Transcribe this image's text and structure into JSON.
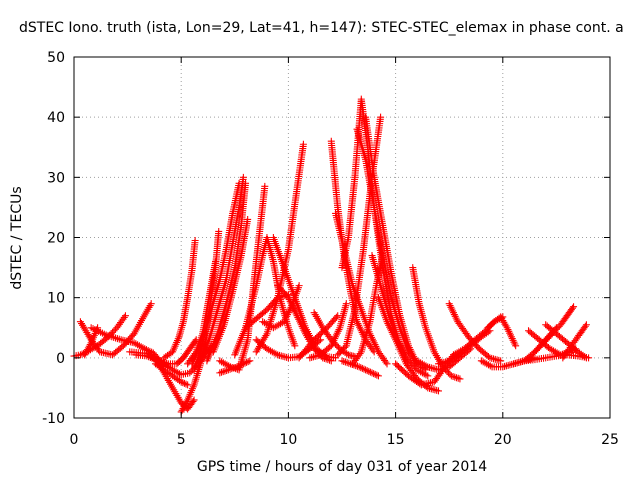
{
  "chart_data": {
    "type": "scatter",
    "title": "dSTEC Iono. truth (ista, Lon=29, Lat=41, h=147): STEC-STEC_elemax in phase cont. a",
    "xlabel": "GPS time / hours of day 031 of year 2014",
    "ylabel": "dSTEC  / TECUs",
    "xlim": [
      0,
      25
    ],
    "ylim": [
      -10,
      50
    ],
    "x_ticks": [
      0,
      5,
      10,
      15,
      20,
      25
    ],
    "y_ticks": [
      -10,
      0,
      10,
      20,
      30,
      40,
      50
    ],
    "grid": true,
    "marker": "+",
    "color": "#ff0000",
    "arcs": [
      {
        "x": [
          0.0,
          0.3,
          0.6,
          1.1,
          1.6,
          2.0,
          2.4
        ],
        "y": [
          0.3,
          0.5,
          1.0,
          2.0,
          3.5,
          5.0,
          7.0
        ]
      },
      {
        "x": [
          0.3,
          0.8,
          1.2,
          1.8,
          2.3,
          2.8,
          3.2,
          3.6
        ],
        "y": [
          6.0,
          3.0,
          1.0,
          0.5,
          2.0,
          4.0,
          6.5,
          9.0
        ]
      },
      {
        "x": [
          0.5,
          0.8,
          1.1
        ],
        "y": [
          0.5,
          2.5,
          5.0
        ]
      },
      {
        "x": [
          0.8,
          1.5,
          2.2,
          2.8,
          3.3,
          3.7,
          4.0,
          4.2
        ],
        "y": [
          5.0,
          3.8,
          3.0,
          2.5,
          1.5,
          0.8,
          -0.5,
          -1.5
        ]
      },
      {
        "x": [
          2.6,
          3.1,
          3.4,
          3.7,
          3.9,
          4.2,
          4.6,
          5.0,
          5.3,
          5.6
        ],
        "y": [
          1.0,
          0.8,
          0.8,
          0.2,
          -0.7,
          -2.5,
          -5.0,
          -7.5,
          -8.5,
          -7.0
        ]
      },
      {
        "x": [
          3.8,
          4.2,
          4.6,
          5.0,
          5.3
        ],
        "y": [
          -1.0,
          -2.0,
          -3.0,
          -4.0,
          -4.5
        ]
      },
      {
        "x": [
          2.9,
          3.4,
          3.8,
          4.2,
          4.6,
          5.0,
          5.4,
          5.8,
          6.1,
          6.4
        ],
        "y": [
          0.5,
          0.3,
          -0.3,
          -1.0,
          -2.0,
          -2.8,
          -2.5,
          -1.0,
          0.5,
          2.0
        ]
      },
      {
        "x": [
          3.6,
          4.0,
          4.4,
          4.8,
          5.1,
          5.4,
          5.7
        ],
        "y": [
          0.2,
          -0.5,
          -1.0,
          -1.0,
          0.0,
          1.5,
          3.0
        ]
      },
      {
        "x": [
          4.2,
          4.6,
          4.9,
          5.1,
          5.3,
          5.5,
          5.65
        ],
        "y": [
          0.0,
          1.0,
          3.5,
          6.0,
          10.0,
          14.5,
          19.5
        ]
      },
      {
        "x": [
          5.0,
          5.3,
          5.6,
          5.9,
          6.2
        ],
        "y": [
          -9.0,
          -7.0,
          -4.5,
          -1.0,
          4.0
        ]
      },
      {
        "x": [
          5.3,
          5.7,
          6.0,
          6.2,
          6.4,
          6.6
        ],
        "y": [
          -1.0,
          1.0,
          4.0,
          8.0,
          12.0,
          16.0
        ]
      },
      {
        "x": [
          5.6,
          5.9,
          6.2,
          6.4,
          6.6,
          6.75
        ],
        "y": [
          -2.0,
          1.0,
          5.5,
          10.0,
          15.0,
          21.0
        ]
      },
      {
        "x": [
          5.5,
          6.0,
          6.4,
          6.8,
          7.1,
          7.4,
          7.7
        ],
        "y": [
          -1.0,
          3.0,
          8.0,
          13.0,
          18.0,
          24.0,
          29.0
        ]
      },
      {
        "x": [
          5.8,
          6.3,
          6.7,
          7.1,
          7.4,
          7.7,
          7.9
        ],
        "y": [
          -1.0,
          3.0,
          8.0,
          13.0,
          19.0,
          25.0,
          30.0
        ]
      },
      {
        "x": [
          6.2,
          6.7,
          7.1,
          7.5,
          7.8,
          8.0
        ],
        "y": [
          -0.5,
          4.0,
          9.0,
          15.0,
          22.0,
          29.0
        ]
      },
      {
        "x": [
          6.5,
          7.0,
          7.4,
          7.8,
          8.1
        ],
        "y": [
          1.0,
          5.5,
          11.0,
          17.0,
          23.0
        ]
      },
      {
        "x": [
          6.8,
          7.3,
          7.7,
          8.1,
          8.5,
          8.9
        ],
        "y": [
          -0.5,
          -1.5,
          -2.0,
          3.0,
          16.0,
          28.5
        ]
      },
      {
        "x": [
          6.8,
          7.2,
          7.6,
          7.9,
          8.2
        ],
        "y": [
          -2.5,
          -2.0,
          -1.5,
          -1.0,
          -0.5
        ]
      },
      {
        "x": [
          7.5,
          8.0,
          8.5,
          8.8,
          9.0,
          9.3,
          9.6,
          10.0,
          10.3
        ],
        "y": [
          0.5,
          5.0,
          12.0,
          17.0,
          20.0,
          16.0,
          10.0,
          5.0,
          2.0
        ]
      },
      {
        "x": [
          8.0,
          8.5,
          9.0,
          9.5,
          10.0
        ],
        "y": [
          5.0,
          6.5,
          8.0,
          10.0,
          10.5
        ]
      },
      {
        "x": [
          8.5,
          9.0,
          9.5,
          10.0,
          10.4,
          10.7
        ],
        "y": [
          1.0,
          4.0,
          10.0,
          18.0,
          28.0,
          35.5
        ]
      },
      {
        "x": [
          8.8,
          9.3,
          9.8,
          10.2,
          10.5
        ],
        "y": [
          6.0,
          5.0,
          6.0,
          9.0,
          12.0
        ]
      },
      {
        "x": [
          8.5,
          9.0,
          9.5,
          10.0,
          10.5,
          11.0,
          11.5
        ],
        "y": [
          3.0,
          1.5,
          0.5,
          0.0,
          0.2,
          1.5,
          3.0
        ]
      },
      {
        "x": [
          9.3,
          9.8,
          10.3,
          10.8,
          11.3,
          11.8,
          12.2
        ],
        "y": [
          20.0,
          15.0,
          10.0,
          5.0,
          1.5,
          0.2,
          0.0
        ]
      },
      {
        "x": [
          9.5,
          10.0,
          10.4,
          10.8,
          11.2,
          11.6,
          12.0
        ],
        "y": [
          12.0,
          10.0,
          7.0,
          4.0,
          1.5,
          0.0,
          -0.5
        ]
      },
      {
        "x": [
          10.5,
          11.2,
          11.8,
          12.3
        ],
        "y": [
          0.0,
          3.0,
          5.0,
          7.0
        ]
      },
      {
        "x": [
          11.0,
          11.5,
          12.0,
          12.4,
          12.7
        ],
        "y": [
          0.0,
          0.5,
          2.0,
          5.0,
          9.0
        ]
      },
      {
        "x": [
          11.2,
          11.6,
          12.0,
          12.4,
          12.8,
          13.1
        ],
        "y": [
          7.5,
          5.0,
          3.0,
          1.5,
          0.5,
          0.2
        ]
      },
      {
        "x": [
          12.0,
          12.3,
          12.6,
          12.9,
          13.2,
          13.6,
          14.0
        ],
        "y": [
          36.0,
          25.0,
          17.0,
          11.0,
          6.0,
          3.0,
          1.0
        ]
      },
      {
        "x": [
          12.2,
          12.6,
          13.0,
          13.4,
          13.8,
          14.2,
          14.6
        ],
        "y": [
          24.0,
          18.0,
          12.0,
          8.0,
          4.0,
          1.0,
          -1.0
        ]
      },
      {
        "x": [
          12.5,
          12.8,
          13.1,
          13.4,
          13.7,
          14.0,
          14.4,
          14.8,
          15.2
        ],
        "y": [
          15.0,
          20.0,
          30.0,
          43.0,
          35.0,
          25.0,
          15.0,
          7.0,
          2.0
        ]
      },
      {
        "x": [
          12.3,
          12.7,
          13.1,
          13.5,
          13.9,
          14.3
        ],
        "y": [
          0.5,
          2.0,
          8.0,
          18.0,
          30.0,
          40.0
        ]
      },
      {
        "x": [
          13.2,
          13.6,
          14.0,
          14.4,
          14.8,
          15.2,
          15.6,
          16.0
        ],
        "y": [
          38.0,
          33.0,
          25.0,
          17.0,
          10.0,
          5.0,
          1.0,
          -1.0
        ]
      },
      {
        "x": [
          13.6,
          14.0,
          14.4,
          14.8,
          15.2,
          15.6,
          16.0,
          16.4
        ],
        "y": [
          40.0,
          30.0,
          22.0,
          14.0,
          7.0,
          2.0,
          -1.0,
          -2.0
        ]
      },
      {
        "x": [
          13.0,
          13.4,
          13.8,
          14.1,
          14.4
        ],
        "y": [
          -1.0,
          1.0,
          6.0,
          12.0,
          17.0
        ]
      },
      {
        "x": [
          12.5,
          12.9,
          13.3,
          13.6,
          13.9,
          14.2
        ],
        "y": [
          -0.5,
          -1.0,
          -1.5,
          -2.0,
          -2.5,
          -3.0
        ]
      },
      {
        "x": [
          13.9,
          14.3,
          14.7,
          15.1,
          15.5,
          16.0,
          16.5
        ],
        "y": [
          17.0,
          12.0,
          7.0,
          3.0,
          0.0,
          -2.0,
          -3.0
        ]
      },
      {
        "x": [
          14.2,
          14.6,
          15.0,
          15.5,
          16.0,
          16.5,
          17.0
        ],
        "y": [
          10.0,
          6.0,
          3.0,
          -1.0,
          -3.5,
          -5.0,
          -5.5
        ]
      },
      {
        "x": [
          15.8,
          16.1,
          16.4,
          16.8,
          17.2,
          17.6,
          18.0
        ],
        "y": [
          15.0,
          9.0,
          5.0,
          1.0,
          -1.5,
          -3.0,
          -3.5
        ]
      },
      {
        "x": [
          15.0,
          15.6,
          16.2,
          16.8,
          17.3,
          17.7
        ],
        "y": [
          -1.0,
          -3.0,
          -4.5,
          -4.0,
          -1.5,
          0.5
        ]
      },
      {
        "x": [
          16.0,
          16.5,
          17.0,
          17.5,
          18.0,
          18.5
        ],
        "y": [
          -0.5,
          -1.5,
          -2.0,
          -1.5,
          0.0,
          1.5
        ]
      },
      {
        "x": [
          17.0,
          17.5,
          18.0,
          18.5,
          19.0,
          19.4
        ],
        "y": [
          -1.0,
          -0.5,
          0.5,
          2.0,
          3.5,
          4.5
        ]
      },
      {
        "x": [
          17.5,
          17.9,
          18.4,
          18.9,
          19.4,
          19.9
        ],
        "y": [
          9.0,
          6.0,
          3.5,
          1.5,
          0.0,
          -0.5
        ]
      },
      {
        "x": [
          17.7,
          18.2,
          18.7,
          19.2,
          19.6,
          20.0
        ],
        "y": [
          0.5,
          1.5,
          3.0,
          4.5,
          6.0,
          6.8
        ]
      },
      {
        "x": [
          19.0,
          19.5,
          20.0,
          20.5,
          21.0,
          21.5
        ],
        "y": [
          -0.5,
          -1.5,
          -1.5,
          -1.0,
          -0.5,
          0.0
        ]
      },
      {
        "x": [
          19.3,
          19.6,
          19.9,
          20.2,
          20.6
        ],
        "y": [
          5.0,
          6.0,
          6.8,
          5.0,
          2.0
        ]
      },
      {
        "x": [
          20.5,
          21.0,
          21.5,
          22.0,
          22.5
        ],
        "y": [
          -1.0,
          -0.5,
          1.0,
          3.0,
          5.0
        ]
      },
      {
        "x": [
          21.2,
          21.7,
          22.2,
          22.7,
          23.1,
          23.4
        ],
        "y": [
          4.5,
          3.0,
          1.5,
          0.5,
          1.0,
          1.5
        ]
      },
      {
        "x": [
          21.5,
          21.9,
          22.3,
          22.7,
          23.0,
          23.3
        ],
        "y": [
          1.0,
          2.5,
          4.0,
          5.5,
          7.0,
          8.5
        ]
      },
      {
        "x": [
          21.0,
          21.5,
          22.0,
          22.5,
          23.0,
          23.5,
          24.0
        ],
        "y": [
          -0.5,
          -0.3,
          0.0,
          0.3,
          0.5,
          0.3,
          0.0
        ]
      },
      {
        "x": [
          22.0,
          22.5,
          23.0,
          23.5,
          23.9
        ],
        "y": [
          5.5,
          4.0,
          2.5,
          1.0,
          0.0
        ]
      },
      {
        "x": [
          22.8,
          23.2,
          23.6,
          23.9
        ],
        "y": [
          0.0,
          2.0,
          4.0,
          5.5
        ]
      }
    ]
  }
}
